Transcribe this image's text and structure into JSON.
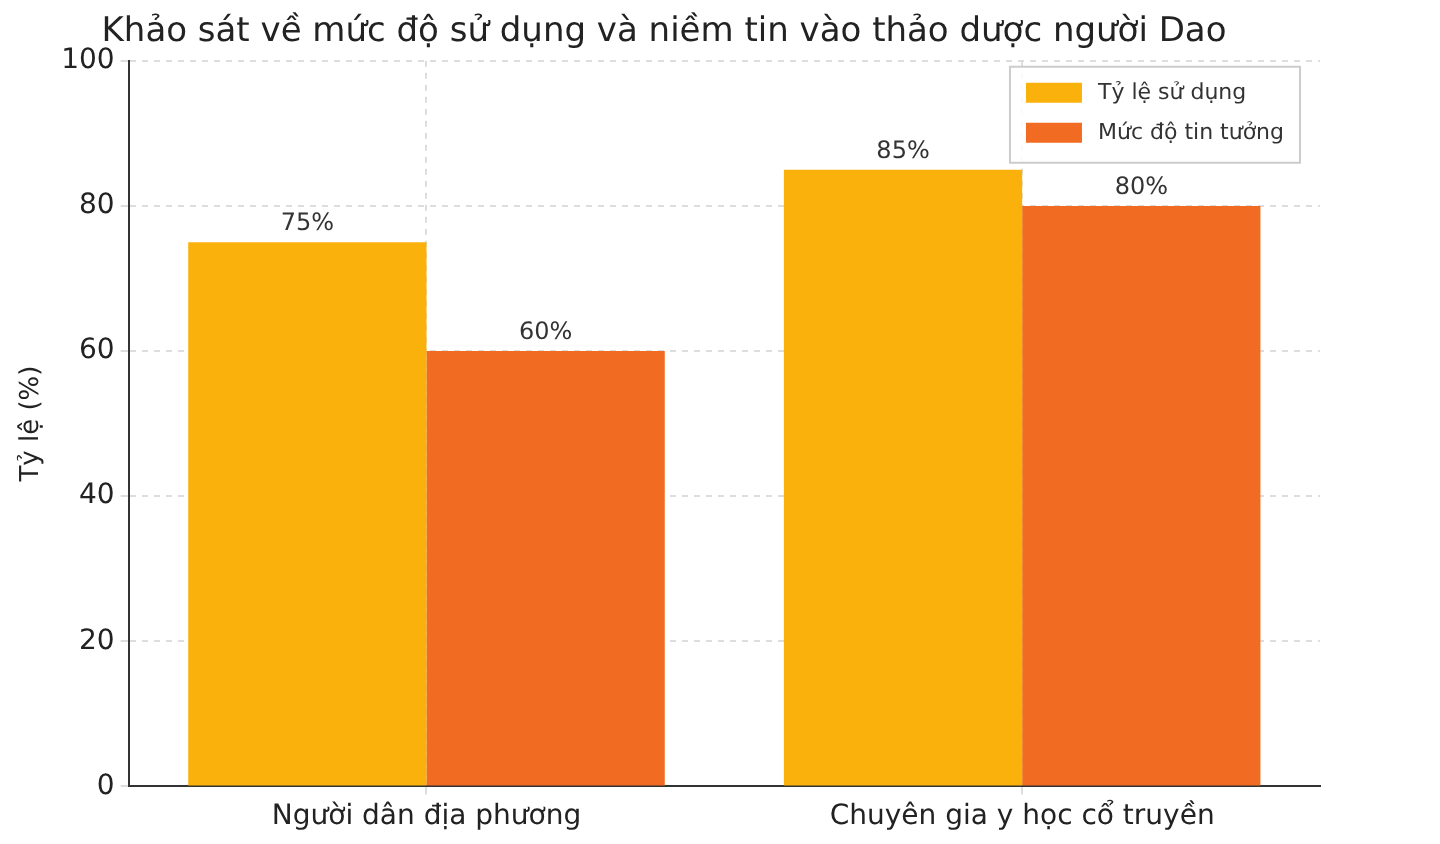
{
  "chart_data": {
    "type": "bar",
    "title": "Khảo sát về mức độ sử dụng và niềm tin vào thảo dược người Dao",
    "ylabel": "Tỷ lệ (%)",
    "categories": [
      "Người dân địa phương",
      "Chuyên gia y học cổ truyền"
    ],
    "series": [
      {
        "name": "Tỷ lệ sử dụng",
        "color": "#fbb10c",
        "values": [
          75,
          85
        ],
        "value_labels": [
          "75%",
          "85%"
        ]
      },
      {
        "name": "Mức độ tin tưởng",
        "color": "#f26b22",
        "values": [
          60,
          80
        ],
        "value_labels": [
          "60%",
          "80%"
        ]
      }
    ],
    "ylim": [
      0,
      100
    ],
    "yticks": [
      0,
      20,
      40,
      60,
      80,
      100
    ],
    "grid": true,
    "legend": "top right"
  }
}
